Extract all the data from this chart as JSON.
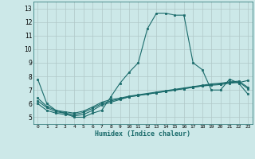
{
  "xlabel": "Humidex (Indice chaleur)",
  "xlim": [
    -0.5,
    23.5
  ],
  "ylim": [
    4.5,
    13.5
  ],
  "xticks": [
    0,
    1,
    2,
    3,
    4,
    5,
    6,
    7,
    8,
    9,
    10,
    11,
    12,
    13,
    14,
    15,
    16,
    17,
    18,
    19,
    20,
    21,
    22,
    23
  ],
  "yticks": [
    5,
    6,
    7,
    8,
    9,
    10,
    11,
    12,
    13
  ],
  "bg_color": "#cce8e8",
  "grid_color": "#b0c8c8",
  "line_color": "#1a6b6b",
  "lines": [
    {
      "x": [
        0,
        1,
        2,
        3,
        4,
        5,
        6,
        7,
        8,
        9,
        10,
        11,
        12,
        13,
        14,
        15,
        16,
        17,
        18,
        19,
        20,
        21,
        22,
        23
      ],
      "y": [
        7.8,
        6.0,
        5.5,
        5.3,
        5.0,
        5.0,
        5.3,
        5.5,
        6.5,
        7.5,
        8.3,
        9.0,
        11.5,
        12.65,
        12.65,
        12.5,
        12.5,
        9.0,
        8.5,
        7.0,
        7.0,
        7.8,
        7.5,
        6.7
      ]
    },
    {
      "x": [
        0,
        1,
        2,
        3,
        4,
        5,
        6,
        7,
        8,
        9,
        10,
        11,
        12,
        13,
        14,
        15,
        16,
        17,
        18,
        19,
        20,
        21,
        22,
        23
      ],
      "y": [
        6.0,
        5.5,
        5.3,
        5.2,
        5.1,
        5.2,
        5.5,
        5.9,
        6.1,
        6.3,
        6.5,
        6.6,
        6.7,
        6.8,
        6.9,
        7.0,
        7.1,
        7.2,
        7.3,
        7.35,
        7.4,
        7.5,
        7.55,
        7.7
      ]
    },
    {
      "x": [
        0,
        1,
        2,
        3,
        4,
        5,
        6,
        7,
        8,
        9,
        10,
        11,
        12,
        13,
        14,
        15,
        16,
        17,
        18,
        19,
        20,
        21,
        22,
        23
      ],
      "y": [
        6.2,
        5.7,
        5.4,
        5.3,
        5.2,
        5.35,
        5.65,
        6.0,
        6.2,
        6.35,
        6.5,
        6.6,
        6.7,
        6.8,
        6.9,
        7.0,
        7.1,
        7.2,
        7.3,
        7.4,
        7.45,
        7.55,
        7.6,
        7.1
      ]
    },
    {
      "x": [
        0,
        1,
        2,
        3,
        4,
        5,
        6,
        7,
        8,
        9,
        10,
        11,
        12,
        13,
        14,
        15,
        16,
        17,
        18,
        19,
        20,
        21,
        22,
        23
      ],
      "y": [
        6.4,
        5.8,
        5.5,
        5.4,
        5.3,
        5.45,
        5.75,
        6.1,
        6.3,
        6.4,
        6.55,
        6.65,
        6.75,
        6.85,
        6.95,
        7.05,
        7.15,
        7.25,
        7.35,
        7.45,
        7.5,
        7.6,
        7.65,
        7.2
      ]
    }
  ]
}
